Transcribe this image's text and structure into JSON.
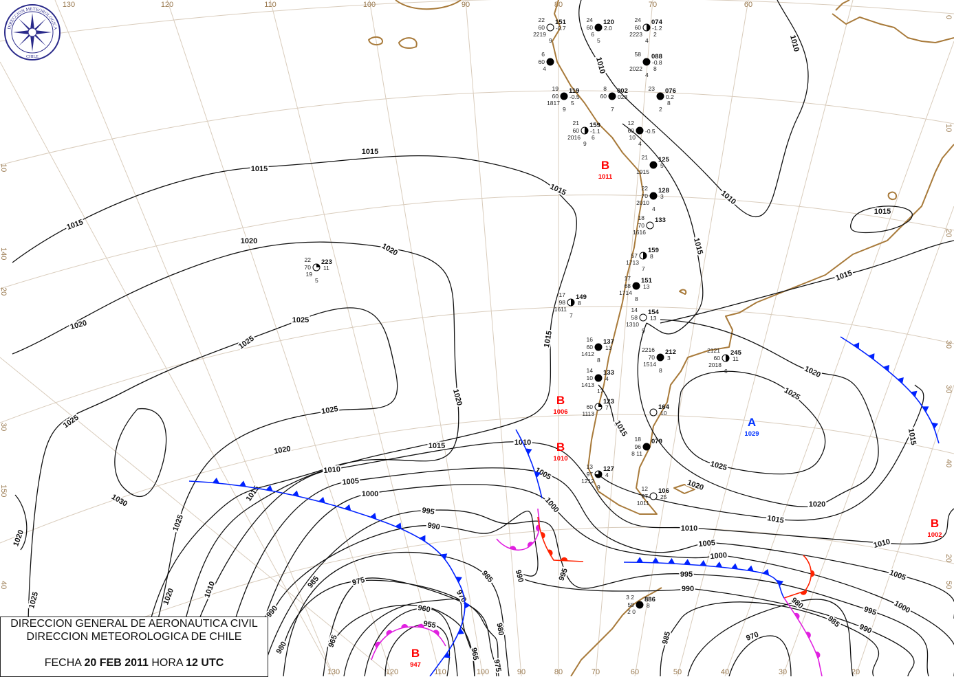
{
  "caption": {
    "line1": "DIRECCION GENERAL DE AERONAUTICA CIVIL",
    "line2": "DIRECCION METEOROLOGICA DE CHILE",
    "date_label": "FECHA",
    "date": "20 FEB 2011",
    "hour_label": "HORA",
    "hour": "12 UTC"
  },
  "logo": {
    "text_top": "DIRECCION METEOROLOGICA",
    "text_bottom": "CHILE"
  },
  "colors": {
    "isobar": "#111111",
    "coast": "#a87a3a",
    "graticule": "#d9ccbc",
    "low": "#ff0000",
    "high": "#0033ff",
    "cold_front": "#0022ff",
    "warm_front": "#ff2200",
    "occluded_front": "#e020e0"
  },
  "graticule": {
    "lon_top": [
      "130",
      "120",
      "110",
      "100",
      "90",
      "80",
      "70",
      "60"
    ],
    "lon_bottom": [
      "130",
      "120",
      "110",
      "100",
      "90",
      "80",
      "70",
      "60",
      "50",
      "40",
      "30",
      "20"
    ],
    "lat_left": [
      "10",
      "140",
      "20",
      "30",
      "150",
      "40"
    ],
    "lat_right": [
      "0",
      "10",
      "20",
      "30",
      "30",
      "40",
      "20",
      "50"
    ]
  },
  "isobars": [
    {
      "value": "1015"
    },
    {
      "value": "1020"
    },
    {
      "value": "1025"
    },
    {
      "value": "1030"
    },
    {
      "value": "1020"
    },
    {
      "value": "1010"
    },
    {
      "value": "1005"
    },
    {
      "value": "1000"
    },
    {
      "value": "995"
    },
    {
      "value": "990"
    },
    {
      "value": "985"
    },
    {
      "value": "980"
    },
    {
      "value": "975"
    },
    {
      "value": "970"
    },
    {
      "value": "965"
    },
    {
      "value": "960"
    },
    {
      "value": "955"
    },
    {
      "value": "1010"
    },
    {
      "value": "1015"
    },
    {
      "value": "1015"
    },
    {
      "value": "1015"
    },
    {
      "value": "1020"
    },
    {
      "value": "1025"
    },
    {
      "value": "1015"
    },
    {
      "value": "970"
    },
    {
      "value": "1015"
    }
  ],
  "pressure_centers": [
    {
      "type": "low",
      "letter": "B",
      "value": "1011"
    },
    {
      "type": "low",
      "letter": "B",
      "value": "1006"
    },
    {
      "type": "low",
      "letter": "B",
      "value": "1010"
    },
    {
      "type": "high",
      "letter": "A",
      "value": "1029"
    },
    {
      "type": "low",
      "letter": "B",
      "value": "1002"
    },
    {
      "type": "low",
      "letter": "B",
      "value": "947"
    }
  ],
  "stations": [
    {
      "id": "074",
      "t": "24",
      "v": "60",
      "d": "2223",
      "p": "-1.2",
      "c": "2",
      "b": "4",
      "cover": "half"
    },
    {
      "id": "151",
      "t": "22",
      "v": "60",
      "d": "2219",
      "p": "-0.7",
      "c": "",
      "b": "9",
      "cover": "clear"
    },
    {
      "id": "120",
      "t": "24",
      "v": "60",
      "d": "6",
      "p": "2.0",
      "c": "",
      "b": "5",
      "cover": "full"
    },
    {
      "id": "",
      "t": "6",
      "v": "60",
      "d": "4",
      "p": "",
      "c": "",
      "b": "",
      "cover": "full"
    },
    {
      "id": "088",
      "t": "58",
      "v": "",
      "d": "2022",
      "p": "-0.8",
      "c": "8",
      "b": "4",
      "cover": "full"
    },
    {
      "id": "119",
      "t": "19",
      "v": "60",
      "d": "1817",
      "p": "-0.5",
      "c": "5",
      "b": "9",
      "cover": "full"
    },
    {
      "id": "076",
      "t": "23",
      "v": "",
      "d": "",
      "p": "0.2",
      "c": "8",
      "b": "2",
      "cover": "full"
    },
    {
      "id": "002",
      "t": "8",
      "v": "60",
      "d": "",
      "p": "023",
      "c": "",
      "b": "7",
      "cover": "full"
    },
    {
      "id": "159",
      "t": "21",
      "v": "60",
      "d": "2016",
      "p": "-1.1",
      "c": "6",
      "b": "9",
      "cover": "half"
    },
    {
      "id": "",
      "t": "12",
      "v": "60",
      "d": "10",
      "p": "-0.5",
      "c": "",
      "b": "4",
      "cover": "full"
    },
    {
      "id": "125",
      "t": "21",
      "v": "",
      "d": "1915",
      "p": "",
      "c": "5",
      "b": "",
      "cover": "full"
    },
    {
      "id": "128",
      "t": "22",
      "v": "70",
      "d": "2010",
      "p": "",
      "c": "3",
      "b": "4",
      "cover": "full"
    },
    {
      "id": "133",
      "t": "18",
      "v": "70",
      "d": "1616",
      "p": "",
      "c": "",
      "b": "",
      "cover": "clear"
    },
    {
      "id": "159",
      "t": "",
      "v": "57",
      "d": "1713",
      "p": "",
      "c": "8",
      "b": "7",
      "cover": "half"
    },
    {
      "id": "151",
      "t": "17",
      "v": "68",
      "d": "1714",
      "p": "",
      "c": "13",
      "b": "8",
      "cover": "full"
    },
    {
      "id": "149",
      "t": "17",
      "v": "98",
      "d": "1611",
      "p": "",
      "c": "8",
      "b": "7",
      "cover": "half"
    },
    {
      "id": "154",
      "t": "14",
      "v": "58",
      "d": "1310",
      "p": "",
      "c": "13",
      "b": "9",
      "cover": "clear"
    },
    {
      "id": "137",
      "t": "16",
      "v": "60",
      "d": "1412",
      "p": "",
      "c": "13",
      "b": "8",
      "cover": "full"
    },
    {
      "id": "133",
      "t": "14",
      "v": "10",
      "d": "1413",
      "p": "",
      "c": "4",
      "b": "17",
      "cover": "full"
    },
    {
      "id": "212",
      "t": "2216",
      "v": "70",
      "d": "1514",
      "p": "",
      "c": "3",
      "b": "8",
      "cover": "full",
      "red": true
    },
    {
      "id": "245",
      "t": "2121",
      "v": "60",
      "d": "2018",
      "p": "",
      "c": "11",
      "b": "6",
      "cover": "half",
      "red": true
    },
    {
      "id": "123",
      "t": "",
      "v": "60",
      "d": "1113",
      "p": "",
      "c": "7",
      "b": "",
      "cover": "quarter"
    },
    {
      "id": "079",
      "t": "18",
      "v": "96",
      "d": "8 11",
      "p": "",
      "c": "",
      "b": "",
      "cover": "full"
    },
    {
      "id": "164",
      "t": "",
      "v": "",
      "d": "",
      "p": "",
      "c": "10",
      "b": "",
      "cover": "clear",
      "redc": true
    },
    {
      "id": "127",
      "t": "13",
      "v": "97",
      "d": "1212",
      "p": "",
      "c": "4",
      "b": "9",
      "cover": "three"
    },
    {
      "id": "106",
      "t": "12",
      "v": "97",
      "d": "1011",
      "p": "",
      "c": "25",
      "b": "",
      "cover": "clear",
      "redc": true
    },
    {
      "id": "223",
      "t": "22",
      "v": "70",
      "d": "19",
      "p": "",
      "c": "11",
      "b": "5",
      "cover": "quarter",
      "red": true
    },
    {
      "id": "886",
      "t": "3 2",
      "v": "59",
      "d": "2 0",
      "p": "",
      "c": "8",
      "b": "",
      "cover": "full"
    }
  ]
}
